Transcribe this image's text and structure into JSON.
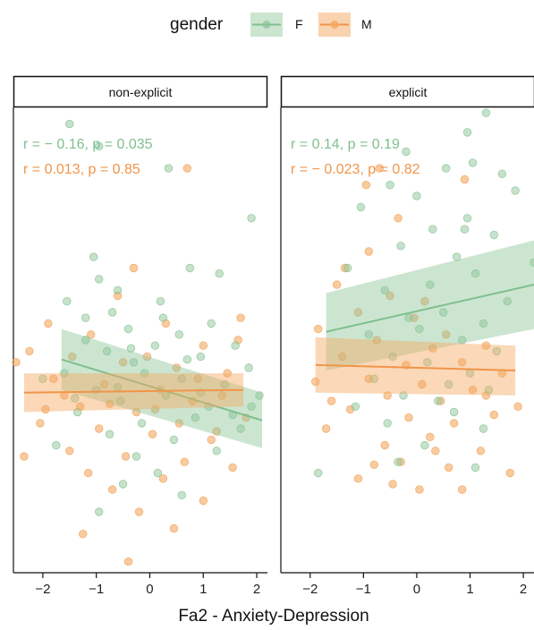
{
  "legend": {
    "title": "gender",
    "items": [
      {
        "label": "F",
        "color": "#8ec69a"
      },
      {
        "label": "M",
        "color": "#f4a862"
      }
    ]
  },
  "chart_data": {
    "type": "scatter",
    "xlabel": "Fa2 - Anxiety-Depression",
    "ylabel": "",
    "x_ticks": [
      -2,
      -1,
      0,
      1,
      2
    ],
    "xlim": [
      -2.55,
      2.2
    ],
    "ylim": [
      -3.3,
      5.1
    ],
    "grid": false,
    "legend_position": "top",
    "colors": {
      "F": "#8ec69a",
      "M": "#f4a862"
    },
    "panels": [
      {
        "title": "non-explicit",
        "stats": [
          {
            "group": "F",
            "text": "r = − 0.16, p = 0.035"
          },
          {
            "group": "M",
            "text": "r = 0.013, p = 0.85"
          }
        ],
        "fits": [
          {
            "group": "F",
            "x": [
              -1.65,
              2.1
            ],
            "y": [
              0.55,
              -0.55
            ],
            "ci_half_width": [
              0.55,
              0.5
            ]
          },
          {
            "group": "M",
            "x": [
              -2.35,
              1.75
            ],
            "y": [
              -0.05,
              0.0
            ],
            "ci_half_width": [
              0.35,
              0.3
            ]
          }
        ],
        "points": {
          "F": [
            [
              -1.5,
              4.8
            ],
            [
              -0.95,
              4.4
            ],
            [
              0.35,
              4.0
            ],
            [
              1.9,
              3.1
            ],
            [
              -1.05,
              2.4
            ],
            [
              0.75,
              2.2
            ],
            [
              -0.95,
              2.0
            ],
            [
              1.3,
              2.1
            ],
            [
              -0.6,
              1.8
            ],
            [
              0.2,
              1.6
            ],
            [
              -1.55,
              1.6
            ],
            [
              -0.7,
              1.4
            ],
            [
              1.15,
              1.2
            ],
            [
              -0.4,
              1.1
            ],
            [
              0.55,
              1.0
            ],
            [
              -1.2,
              0.9
            ],
            [
              1.6,
              0.8
            ],
            [
              0.1,
              0.8
            ],
            [
              -0.8,
              0.7
            ],
            [
              0.95,
              0.6
            ],
            [
              -0.3,
              0.5
            ],
            [
              1.85,
              0.4
            ],
            [
              -1.6,
              0.3
            ],
            [
              0.6,
              0.2
            ],
            [
              -0.1,
              0.3
            ],
            [
              1.4,
              0.1
            ],
            [
              -1.0,
              0.0
            ],
            [
              0.3,
              -0.1
            ],
            [
              -0.55,
              -0.2
            ],
            [
              1.1,
              -0.3
            ],
            [
              -1.35,
              -0.4
            ],
            [
              0.85,
              -0.5
            ],
            [
              -0.15,
              -0.6
            ],
            [
              1.7,
              -0.7
            ],
            [
              -0.75,
              -0.8
            ],
            [
              0.45,
              -0.9
            ],
            [
              -1.75,
              -1.0
            ],
            [
              1.25,
              -1.1
            ],
            [
              -0.25,
              -1.2
            ],
            [
              0.15,
              -1.5
            ],
            [
              -0.5,
              -1.7
            ],
            [
              0.6,
              -1.9
            ],
            [
              -0.95,
              -2.2
            ],
            [
              1.9,
              -0.3
            ],
            [
              -1.2,
              1.3
            ],
            [
              0.25,
              1.3
            ],
            [
              -0.6,
              0.05
            ],
            [
              0.95,
              -0.05
            ],
            [
              -2.0,
              0.2
            ],
            [
              2.05,
              -0.1
            ],
            [
              -1.4,
              -0.15
            ],
            [
              1.55,
              -0.45
            ],
            [
              0.7,
              0.55
            ],
            [
              -0.35,
              0.75
            ]
          ],
          "M": [
            [
              0.7,
              4.0
            ],
            [
              -0.3,
              2.2
            ],
            [
              -1.9,
              1.2
            ],
            [
              -2.25,
              0.7
            ],
            [
              -0.6,
              1.7
            ],
            [
              1.7,
              1.3
            ],
            [
              -1.1,
              1.0
            ],
            [
              0.3,
              1.2
            ],
            [
              -1.45,
              0.6
            ],
            [
              1.0,
              0.8
            ],
            [
              -0.5,
              0.5
            ],
            [
              0.5,
              0.4
            ],
            [
              1.65,
              0.9
            ],
            [
              -1.8,
              0.2
            ],
            [
              -0.85,
              0.1
            ],
            [
              0.2,
              0.0
            ],
            [
              1.35,
              -0.1
            ],
            [
              -1.3,
              -0.3
            ],
            [
              -0.25,
              -0.4
            ],
            [
              0.8,
              -0.2
            ],
            [
              1.8,
              -0.5
            ],
            [
              -2.05,
              -0.6
            ],
            [
              -0.95,
              -0.7
            ],
            [
              0.05,
              -0.8
            ],
            [
              1.15,
              -0.9
            ],
            [
              -1.5,
              -1.1
            ],
            [
              -0.45,
              -1.2
            ],
            [
              0.65,
              -1.3
            ],
            [
              1.55,
              -1.4
            ],
            [
              -1.15,
              -1.5
            ],
            [
              0.25,
              -1.6
            ],
            [
              -0.7,
              -1.8
            ],
            [
              1.0,
              -2.0
            ],
            [
              -0.2,
              -2.2
            ],
            [
              0.45,
              -2.5
            ],
            [
              -1.25,
              -2.6
            ],
            [
              -0.4,
              -3.1
            ],
            [
              -2.35,
              -1.2
            ],
            [
              -2.5,
              0.5
            ],
            [
              0.9,
              0.2
            ],
            [
              -1.6,
              -0.1
            ],
            [
              1.45,
              0.3
            ],
            [
              -0.05,
              0.6
            ],
            [
              0.55,
              -0.6
            ],
            [
              -0.75,
              -0.25
            ],
            [
              1.25,
              -0.75
            ],
            [
              -1.95,
              -0.35
            ],
            [
              0.1,
              -0.35
            ]
          ]
        }
      },
      {
        "title": "explicit",
        "stats": [
          {
            "group": "F",
            "text": "r = 0.14, p = 0.19"
          },
          {
            "group": "M",
            "text": "r = − 0.023, p = 0.82"
          }
        ],
        "fits": [
          {
            "group": "F",
            "x": [
              -1.7,
              2.2
            ],
            "y": [
              1.05,
              1.9
            ],
            "ci_half_width": [
              0.7,
              0.8
            ]
          },
          {
            "group": "M",
            "x": [
              -1.9,
              1.85
            ],
            "y": [
              0.45,
              0.35
            ],
            "ci_half_width": [
              0.5,
              0.45
            ]
          }
        ],
        "points": {
          "F": [
            [
              1.3,
              5.0
            ],
            [
              0.95,
              4.65
            ],
            [
              1.05,
              4.1
            ],
            [
              -0.2,
              4.3
            ],
            [
              0.55,
              4.0
            ],
            [
              -0.5,
              3.7
            ],
            [
              1.85,
              3.6
            ],
            [
              1.6,
              3.9
            ],
            [
              -1.05,
              3.3
            ],
            [
              0.0,
              3.5
            ],
            [
              0.95,
              3.1
            ],
            [
              0.3,
              2.9
            ],
            [
              1.45,
              2.8
            ],
            [
              -0.3,
              2.6
            ],
            [
              0.75,
              2.4
            ],
            [
              1.1,
              2.1
            ],
            [
              0.25,
              1.9
            ],
            [
              -0.6,
              1.8
            ],
            [
              1.7,
              1.6
            ],
            [
              0.5,
              1.4
            ],
            [
              -0.15,
              1.3
            ],
            [
              1.25,
              1.2
            ],
            [
              0.05,
              1.1
            ],
            [
              -0.9,
              1.0
            ],
            [
              0.85,
              0.9
            ],
            [
              1.5,
              0.7
            ],
            [
              -0.45,
              0.6
            ],
            [
              0.2,
              0.5
            ],
            [
              1.0,
              0.3
            ],
            [
              -0.8,
              0.2
            ],
            [
              0.6,
              0.1
            ],
            [
              1.35,
              0.0
            ],
            [
              -0.25,
              -0.1
            ],
            [
              0.4,
              -0.2
            ],
            [
              -1.15,
              -0.3
            ],
            [
              0.7,
              -0.4
            ],
            [
              -0.55,
              -0.6
            ],
            [
              1.25,
              -0.7
            ],
            [
              0.15,
              -1.0
            ],
            [
              -0.35,
              -1.3
            ],
            [
              1.1,
              -1.4
            ],
            [
              -1.85,
              -1.5
            ],
            [
              2.2,
              2.3
            ],
            [
              0.9,
              2.9
            ],
            [
              -1.3,
              2.2
            ]
          ],
          "M": [
            [
              0.9,
              3.8
            ],
            [
              -0.7,
              4.0
            ],
            [
              -0.95,
              3.7
            ],
            [
              -0.35,
              3.1
            ],
            [
              -0.9,
              2.5
            ],
            [
              -1.35,
              2.2
            ],
            [
              -1.5,
              1.9
            ],
            [
              -0.5,
              1.7
            ],
            [
              0.15,
              1.6
            ],
            [
              -1.1,
              1.4
            ],
            [
              -0.05,
              1.3
            ],
            [
              -1.85,
              1.1
            ],
            [
              0.55,
              1.0
            ],
            [
              -0.75,
              0.9
            ],
            [
              1.3,
              0.8
            ],
            [
              0.3,
              0.75
            ],
            [
              -1.4,
              0.6
            ],
            [
              0.85,
              0.5
            ],
            [
              -0.2,
              0.45
            ],
            [
              1.6,
              0.3
            ],
            [
              -0.9,
              0.2
            ],
            [
              0.1,
              0.1
            ],
            [
              1.05,
              0.0
            ],
            [
              -0.55,
              -0.1
            ],
            [
              0.45,
              -0.2
            ],
            [
              -1.25,
              -0.35
            ],
            [
              1.45,
              -0.45
            ],
            [
              -0.15,
              -0.5
            ],
            [
              0.7,
              -0.6
            ],
            [
              -1.7,
              -0.7
            ],
            [
              0.25,
              -0.85
            ],
            [
              -0.6,
              -1.0
            ],
            [
              1.2,
              -1.1
            ],
            [
              -0.3,
              -1.3
            ],
            [
              0.6,
              -1.4
            ],
            [
              1.75,
              -1.5
            ],
            [
              -1.1,
              -1.6
            ],
            [
              -0.45,
              -1.7
            ],
            [
              0.05,
              -1.8
            ],
            [
              0.85,
              -1.8
            ],
            [
              -1.6,
              -0.2
            ],
            [
              1.9,
              -0.3
            ],
            [
              -0.8,
              -1.35
            ],
            [
              0.35,
              -1.1
            ],
            [
              1.3,
              -0.1
            ],
            [
              -1.9,
              0.15
            ]
          ]
        }
      }
    ]
  }
}
